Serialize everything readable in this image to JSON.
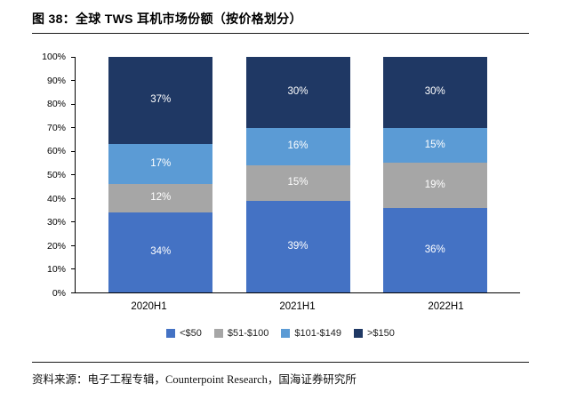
{
  "title": "图 38：全球 TWS 耳机市场份额（按价格划分）",
  "source": "资料来源：电子工程专辑，Counterpoint Research，国海证券研究所",
  "chart_data": {
    "type": "bar",
    "subtype": "stacked-100-percent",
    "title": "全球 TWS 耳机市场份额（按价格划分）",
    "categories": [
      "2020H1",
      "2021H1",
      "2022H1"
    ],
    "series": [
      {
        "name": "<$50",
        "color": "#4472C4",
        "values": [
          34,
          39,
          36
        ]
      },
      {
        "name": "$51-$100",
        "color": "#A6A6A6",
        "values": [
          12,
          15,
          19
        ]
      },
      {
        "name": "$101-$149",
        "color": "#5B9BD5",
        "values": [
          17,
          16,
          15
        ]
      },
      {
        "name": ">$150",
        "color": "#1F3864",
        "values": [
          37,
          30,
          30
        ]
      }
    ],
    "xlabel": "",
    "ylabel": "",
    "ylim": [
      0,
      100
    ],
    "y_ticks": [
      "0%",
      "10%",
      "20%",
      "30%",
      "40%",
      "50%",
      "60%",
      "70%",
      "80%",
      "90%",
      "100%"
    ],
    "grid": false,
    "legend_position": "bottom",
    "value_label_format": "{value}%",
    "value_label_color": "#ffffff"
  }
}
